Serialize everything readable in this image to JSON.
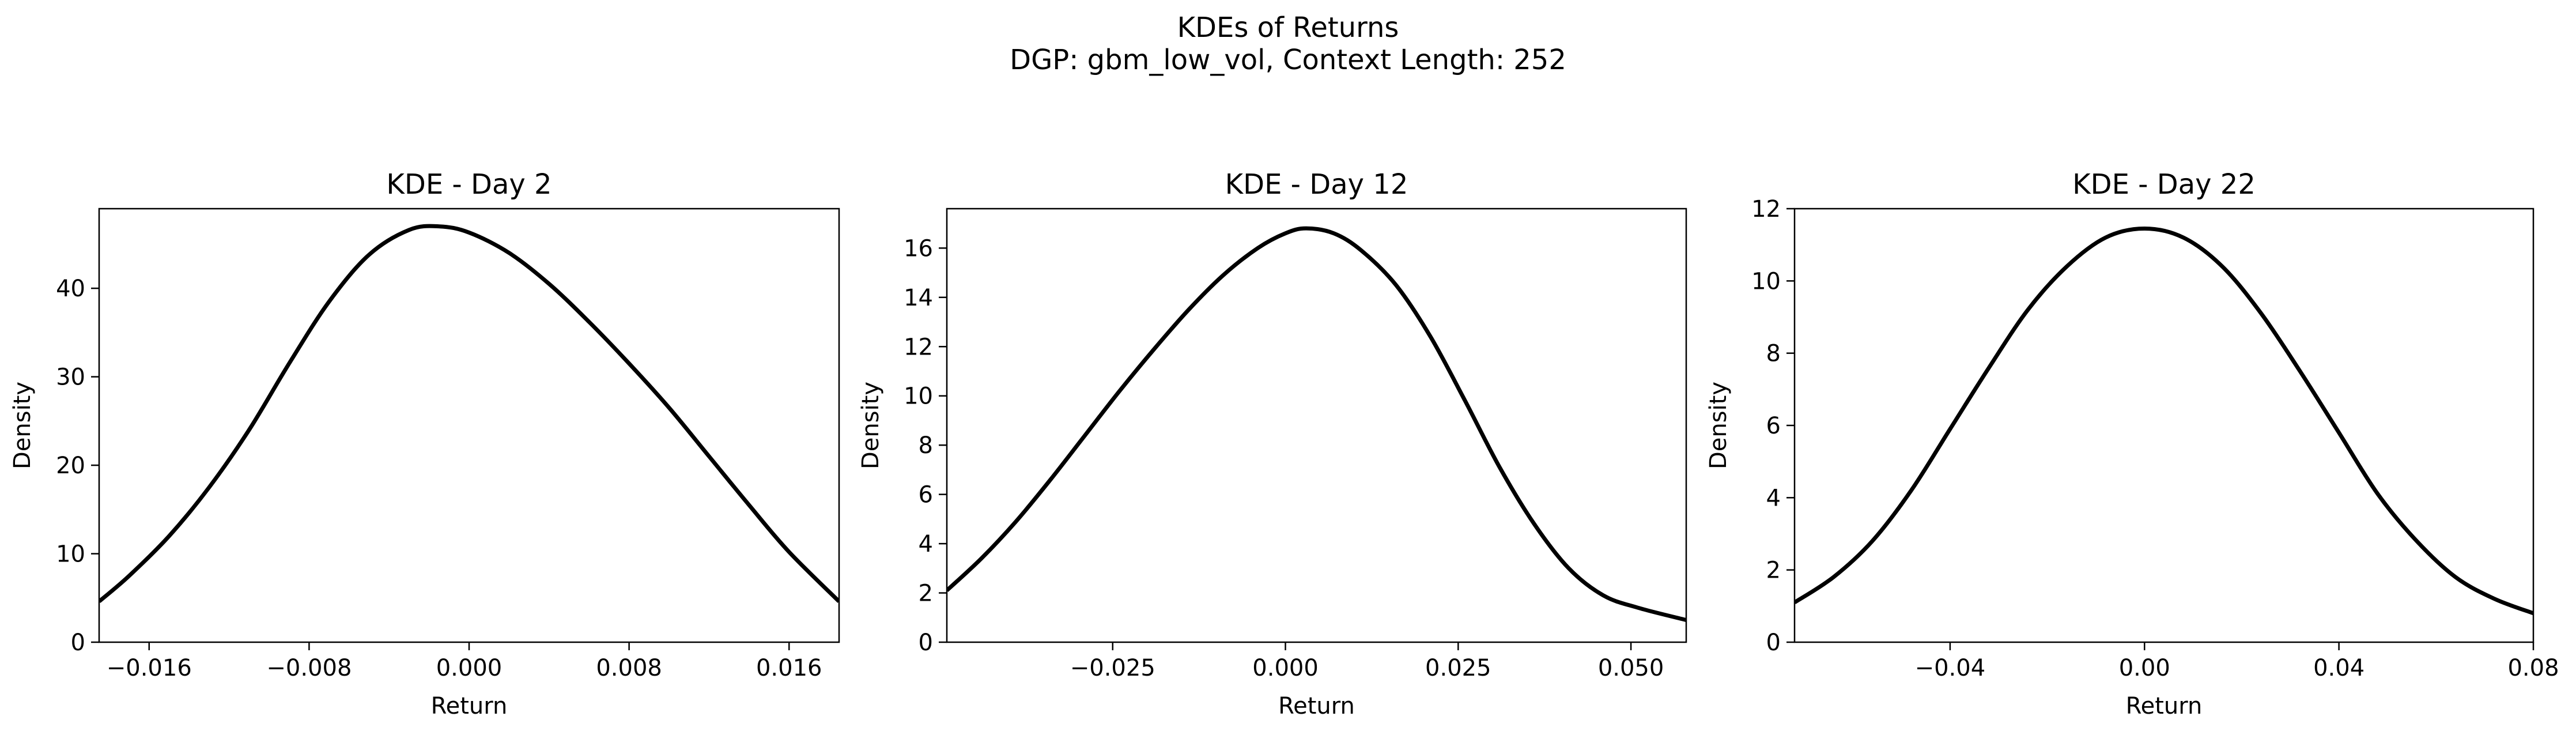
{
  "figure": {
    "title_line1": "KDEs of Returns",
    "title_line2": "DGP: gbm_low_vol, Context Length: 252"
  },
  "chart_data": [
    {
      "type": "line",
      "title": "KDE - Day 2",
      "xlabel": "Return",
      "ylabel": "Density",
      "xlim": [
        -0.0185,
        0.0185
      ],
      "ylim": [
        0,
        49
      ],
      "xticks": [
        -0.016,
        -0.008,
        0.0,
        0.008,
        0.016
      ],
      "xtick_labels": [
        "−0.016",
        "−0.008",
        "0.000",
        "0.008",
        "0.016"
      ],
      "yticks": [
        0,
        10,
        20,
        30,
        40
      ],
      "ytick_labels": [
        "0",
        "10",
        "20",
        "30",
        "40"
      ],
      "grid": false,
      "series": [
        {
          "color": "#000000",
          "x": [
            -0.0185,
            -0.017,
            -0.015,
            -0.013,
            -0.011,
            -0.009,
            -0.007,
            -0.005,
            -0.003,
            -0.0015,
            0.0,
            0.002,
            0.004,
            0.006,
            0.008,
            0.01,
            0.012,
            0.014,
            0.016,
            0.0185
          ],
          "y": [
            4.6,
            7.5,
            12.0,
            17.5,
            24.0,
            31.5,
            38.5,
            43.8,
            46.6,
            47.0,
            46.3,
            44.0,
            40.5,
            36.2,
            31.5,
            26.5,
            21.0,
            15.5,
            10.2,
            4.6
          ]
        }
      ]
    },
    {
      "type": "line",
      "title": "KDE - Day 12",
      "xlabel": "Return",
      "ylabel": "Density",
      "xlim": [
        -0.049,
        0.058
      ],
      "ylim": [
        0,
        17.6
      ],
      "xticks": [
        -0.025,
        0.0,
        0.025,
        0.05
      ],
      "xtick_labels": [
        "−0.025",
        "0.000",
        "0.025",
        "0.050"
      ],
      "yticks": [
        0,
        2,
        4,
        6,
        8,
        10,
        12,
        14,
        16
      ],
      "ytick_labels": [
        "0",
        "2",
        "4",
        "6",
        "8",
        "10",
        "12",
        "14",
        "16"
      ],
      "grid": false,
      "series": [
        {
          "color": "#000000",
          "x": [
            -0.049,
            -0.044,
            -0.039,
            -0.034,
            -0.029,
            -0.024,
            -0.019,
            -0.014,
            -0.009,
            -0.004,
            0.0,
            0.003,
            0.007,
            0.011,
            0.016,
            0.021,
            0.026,
            0.031,
            0.036,
            0.041,
            0.046,
            0.051,
            0.058
          ],
          "y": [
            2.1,
            3.4,
            4.9,
            6.6,
            8.4,
            10.2,
            11.9,
            13.5,
            14.9,
            16.0,
            16.6,
            16.8,
            16.6,
            15.9,
            14.5,
            12.4,
            9.8,
            7.1,
            4.8,
            3.0,
            1.9,
            1.4,
            0.9
          ]
        }
      ]
    },
    {
      "type": "line",
      "title": "KDE - Day 22",
      "xlabel": "Return",
      "ylabel": "Density",
      "xlim": [
        -0.072,
        0.08
      ],
      "ylim": [
        0,
        12
      ],
      "xticks": [
        -0.04,
        0.0,
        0.04,
        0.08
      ],
      "xtick_labels": [
        "−0.04",
        "0.00",
        "0.04",
        "0.08"
      ],
      "yticks": [
        0,
        2,
        4,
        6,
        8,
        10,
        12
      ],
      "ytick_labels": [
        "0",
        "2",
        "4",
        "6",
        "8",
        "10",
        "12"
      ],
      "grid": false,
      "series": [
        {
          "color": "#000000",
          "x": [
            -0.072,
            -0.064,
            -0.056,
            -0.048,
            -0.04,
            -0.032,
            -0.024,
            -0.016,
            -0.008,
            0.0,
            0.008,
            0.016,
            0.024,
            0.032,
            0.04,
            0.048,
            0.056,
            0.064,
            0.072,
            0.08
          ],
          "y": [
            1.1,
            1.8,
            2.8,
            4.2,
            5.9,
            7.6,
            9.2,
            10.4,
            11.2,
            11.45,
            11.2,
            10.4,
            9.1,
            7.5,
            5.8,
            4.1,
            2.8,
            1.8,
            1.2,
            0.8
          ]
        }
      ]
    }
  ]
}
